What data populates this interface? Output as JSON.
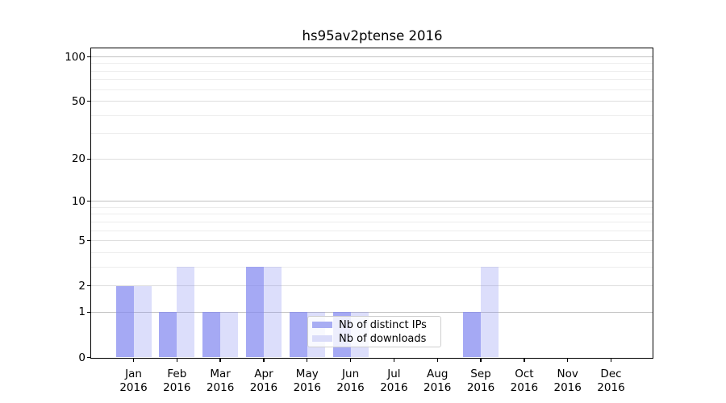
{
  "title": "hs95av2ptense 2016",
  "colors": {
    "distinct_ips_bar": "rgba(130,136,240,0.72)",
    "downloads_bar": "rgba(130,136,240,0.28)",
    "legend_swatch_ips": "#a8adf3",
    "legend_swatch_downloads": "#dadcf9",
    "axis": "#000000"
  },
  "legend": {
    "items": [
      {
        "label": "Nb of distinct IPs",
        "color_key": "legend_swatch_ips"
      },
      {
        "label": "Nb of downloads",
        "color_key": "legend_swatch_downloads"
      }
    ]
  },
  "y_axis": {
    "tick_labels": [
      "100",
      "50",
      "20",
      "10",
      "5",
      "2",
      "1",
      "0"
    ],
    "tick_values": [
      100,
      50,
      20,
      10,
      5,
      2,
      1,
      0
    ],
    "decade_values": [
      1,
      10,
      100
    ],
    "minor_grid_values": [
      3,
      4,
      6,
      7,
      8,
      9,
      30,
      40,
      60,
      70,
      80,
      90
    ]
  },
  "x_axis": {
    "labels": [
      {
        "month": "Jan",
        "year": "2016"
      },
      {
        "month": "Feb",
        "year": "2016"
      },
      {
        "month": "Mar",
        "year": "2016"
      },
      {
        "month": "Apr",
        "year": "2016"
      },
      {
        "month": "May",
        "year": "2016"
      },
      {
        "month": "Jun",
        "year": "2016"
      },
      {
        "month": "Jul",
        "year": "2016"
      },
      {
        "month": "Aug",
        "year": "2016"
      },
      {
        "month": "Sep",
        "year": "2016"
      },
      {
        "month": "Oct",
        "year": "2016"
      },
      {
        "month": "Nov",
        "year": "2016"
      },
      {
        "month": "Dec",
        "year": "2016"
      }
    ]
  },
  "chart_data": {
    "type": "bar",
    "categories": [
      "Jan 2016",
      "Feb 2016",
      "Mar 2016",
      "Apr 2016",
      "May 2016",
      "Jun 2016",
      "Jul 2016",
      "Aug 2016",
      "Sep 2016",
      "Oct 2016",
      "Nov 2016",
      "Dec 2016"
    ],
    "series": [
      {
        "name": "Nb of distinct IPs",
        "values": [
          2,
          1,
          1,
          3,
          1,
          1,
          0,
          0,
          1,
          0,
          0,
          0
        ]
      },
      {
        "name": "Nb of downloads",
        "values": [
          2,
          3,
          1,
          3,
          1,
          1,
          0,
          0,
          3,
          0,
          0,
          0
        ]
      }
    ],
    "title": "hs95av2ptense 2016",
    "xlabel": "",
    "ylabel": "",
    "yscale": "log(1+v) symlog-like, 0 at baseline",
    "yticks": [
      0,
      1,
      2,
      5,
      10,
      20,
      50,
      100
    ],
    "ylim": [
      0,
      115
    ],
    "grid": true,
    "legend_position": "lower center inside plot"
  }
}
